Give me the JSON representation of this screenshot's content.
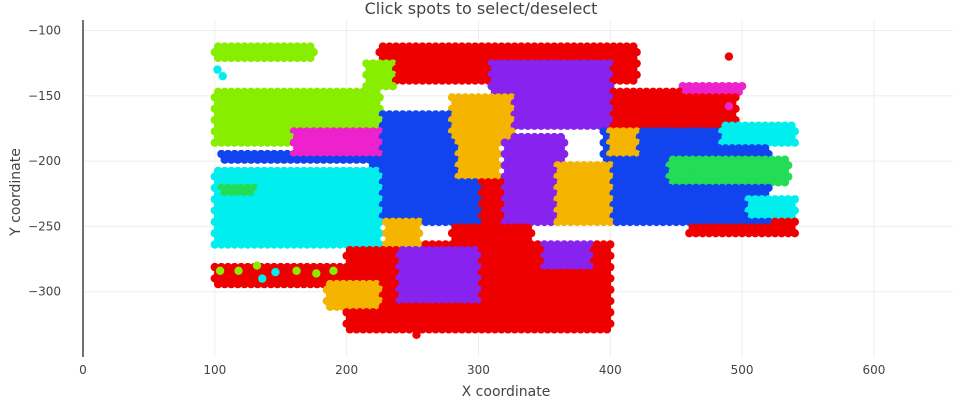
{
  "chart_data": {
    "type": "scatter",
    "title": "Click spots to select/deselect",
    "xlabel": "X coordinate",
    "ylabel": "Y coordinate",
    "xlim": [
      0,
      660
    ],
    "ylim": [
      -350,
      -92
    ],
    "x_ticks": [
      0,
      100,
      200,
      300,
      400,
      500,
      600
    ],
    "y_ticks": [
      -100,
      -150,
      -200,
      -250,
      -300
    ],
    "x_tick_labels": [
      "0",
      "100",
      "200",
      "300",
      "400",
      "500",
      "600"
    ],
    "y_tick_labels": [
      "−100",
      "−150",
      "−200",
      "−250",
      "−300"
    ],
    "grid": true,
    "legend": "none",
    "series": [
      {
        "color": "#ee0000",
        "regions": [
          {
            "x": [
              225,
              420
            ],
            "y": [
              -140,
              -112
            ]
          },
          {
            "x": [
              400,
              495
            ],
            "y": [
              -185,
              -145
            ]
          },
          {
            "x": [
              200,
              400
            ],
            "y": [
              -330,
              -262
            ]
          },
          {
            "x": [
              280,
              340
            ],
            "y": [
              -300,
              -215
            ]
          },
          {
            "x": [
              460,
              540
            ],
            "y": [
              -258,
              -225
            ]
          },
          {
            "x": [
              100,
              220
            ],
            "y": [
              -298,
              -278
            ]
          }
        ],
        "points": [
          [
            253,
            -333
          ],
          [
            490,
            -120
          ]
        ]
      },
      {
        "color": "#1144ee",
        "regions": [
          {
            "x": [
              105,
              290
            ],
            "y": [
              -200,
              -192
            ]
          },
          {
            "x": [
              220,
              300
            ],
            "y": [
              -250,
              -160
            ]
          },
          {
            "x": [
              395,
              520
            ],
            "y": [
              -250,
              -175
            ]
          }
        ]
      },
      {
        "color": "#8822ee",
        "regions": [
          {
            "x": [
              310,
              400
            ],
            "y": [
              -175,
              -125
            ]
          },
          {
            "x": [
              320,
              365
            ],
            "y": [
              -250,
              -180
            ]
          },
          {
            "x": [
              240,
              300
            ],
            "y": [
              -310,
              -265
            ]
          },
          {
            "x": [
              350,
              385
            ],
            "y": [
              -285,
              -260
            ]
          }
        ]
      },
      {
        "color": "#f4b400",
        "regions": [
          {
            "x": [
              280,
              325
            ],
            "y": [
              -185,
              -150
            ]
          },
          {
            "x": [
              285,
              315
            ],
            "y": [
              -215,
              -180
            ]
          },
          {
            "x": [
              360,
              400
            ],
            "y": [
              -250,
              -200
            ]
          },
          {
            "x": [
              185,
              225
            ],
            "y": [
              -315,
              -290
            ]
          },
          {
            "x": [
              230,
              255
            ],
            "y": [
              -265,
              -245
            ]
          },
          {
            "x": [
              400,
              420
            ],
            "y": [
              -195,
              -175
            ]
          }
        ]
      },
      {
        "color": "#00eeee",
        "regions": [
          {
            "x": [
              100,
              225
            ],
            "y": [
              -265,
              -205
            ]
          },
          {
            "x": [
              485,
              540
            ],
            "y": [
              -190,
              -172
            ]
          },
          {
            "x": [
              505,
              540
            ],
            "y": [
              -245,
              -225
            ]
          }
        ],
        "points": [
          [
            102,
            -130
          ],
          [
            106,
            -135
          ],
          [
            136,
            -290
          ],
          [
            146,
            -285
          ]
        ]
      },
      {
        "color": "#88ee00",
        "regions": [
          {
            "x": [
              100,
              225
            ],
            "y": [
              -190,
              -145
            ]
          },
          {
            "x": [
              100,
              175
            ],
            "y": [
              -125,
              -110
            ]
          },
          {
            "x": [
              215,
              235
            ],
            "y": [
              -143,
              -125
            ]
          }
        ],
        "points": [
          [
            104,
            -284
          ],
          [
            118,
            -284
          ],
          [
            132,
            -280
          ],
          [
            162,
            -284
          ],
          [
            177,
            -286
          ],
          [
            190,
            -284
          ]
        ]
      },
      {
        "color": "#22dd55",
        "regions": [
          {
            "x": [
              445,
              535
            ],
            "y": [
              -217,
              -195
            ]
          },
          {
            "x": [
              104,
              130
            ],
            "y": [
              -228,
              -218
            ]
          }
        ]
      },
      {
        "color": "#ee22cc",
        "regions": [
          {
            "x": [
              160,
              225
            ],
            "y": [
              -195,
              -175
            ]
          },
          {
            "x": [
              455,
              500
            ],
            "y": [
              -150,
              -140
            ]
          }
        ],
        "points": [
          [
            490,
            -158
          ],
          [
            470,
            -143
          ],
          [
            495,
            -145
          ]
        ]
      }
    ]
  }
}
